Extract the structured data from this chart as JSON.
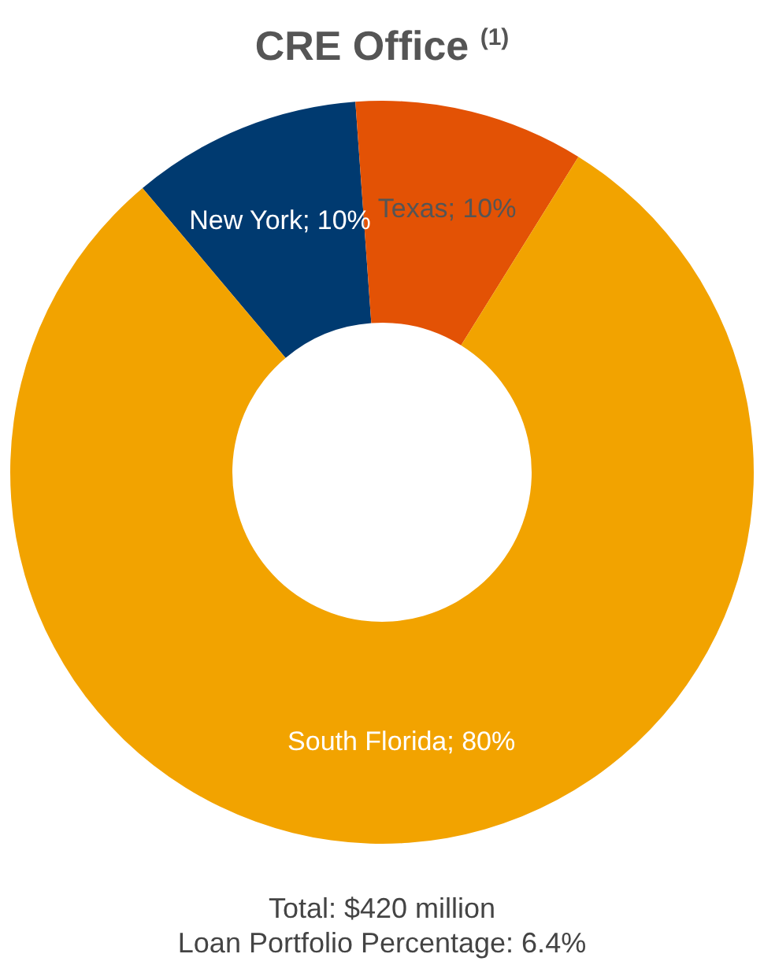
{
  "chart_data": {
    "type": "donut",
    "title": "CRE Office $^{(1)}$",
    "categories": [
      "New York",
      "Texas",
      "South Florida"
    ],
    "values": [
      10,
      10,
      80
    ],
    "colors": [
      "#003a70",
      "#e35205",
      "#f2a300"
    ],
    "value_labels": [
      "10%",
      "10%",
      "80%"
    ],
    "annotations": [
      "Total: $420 million",
      "Loan Portfolio Percentage: 6.4%"
    ]
  }
}
